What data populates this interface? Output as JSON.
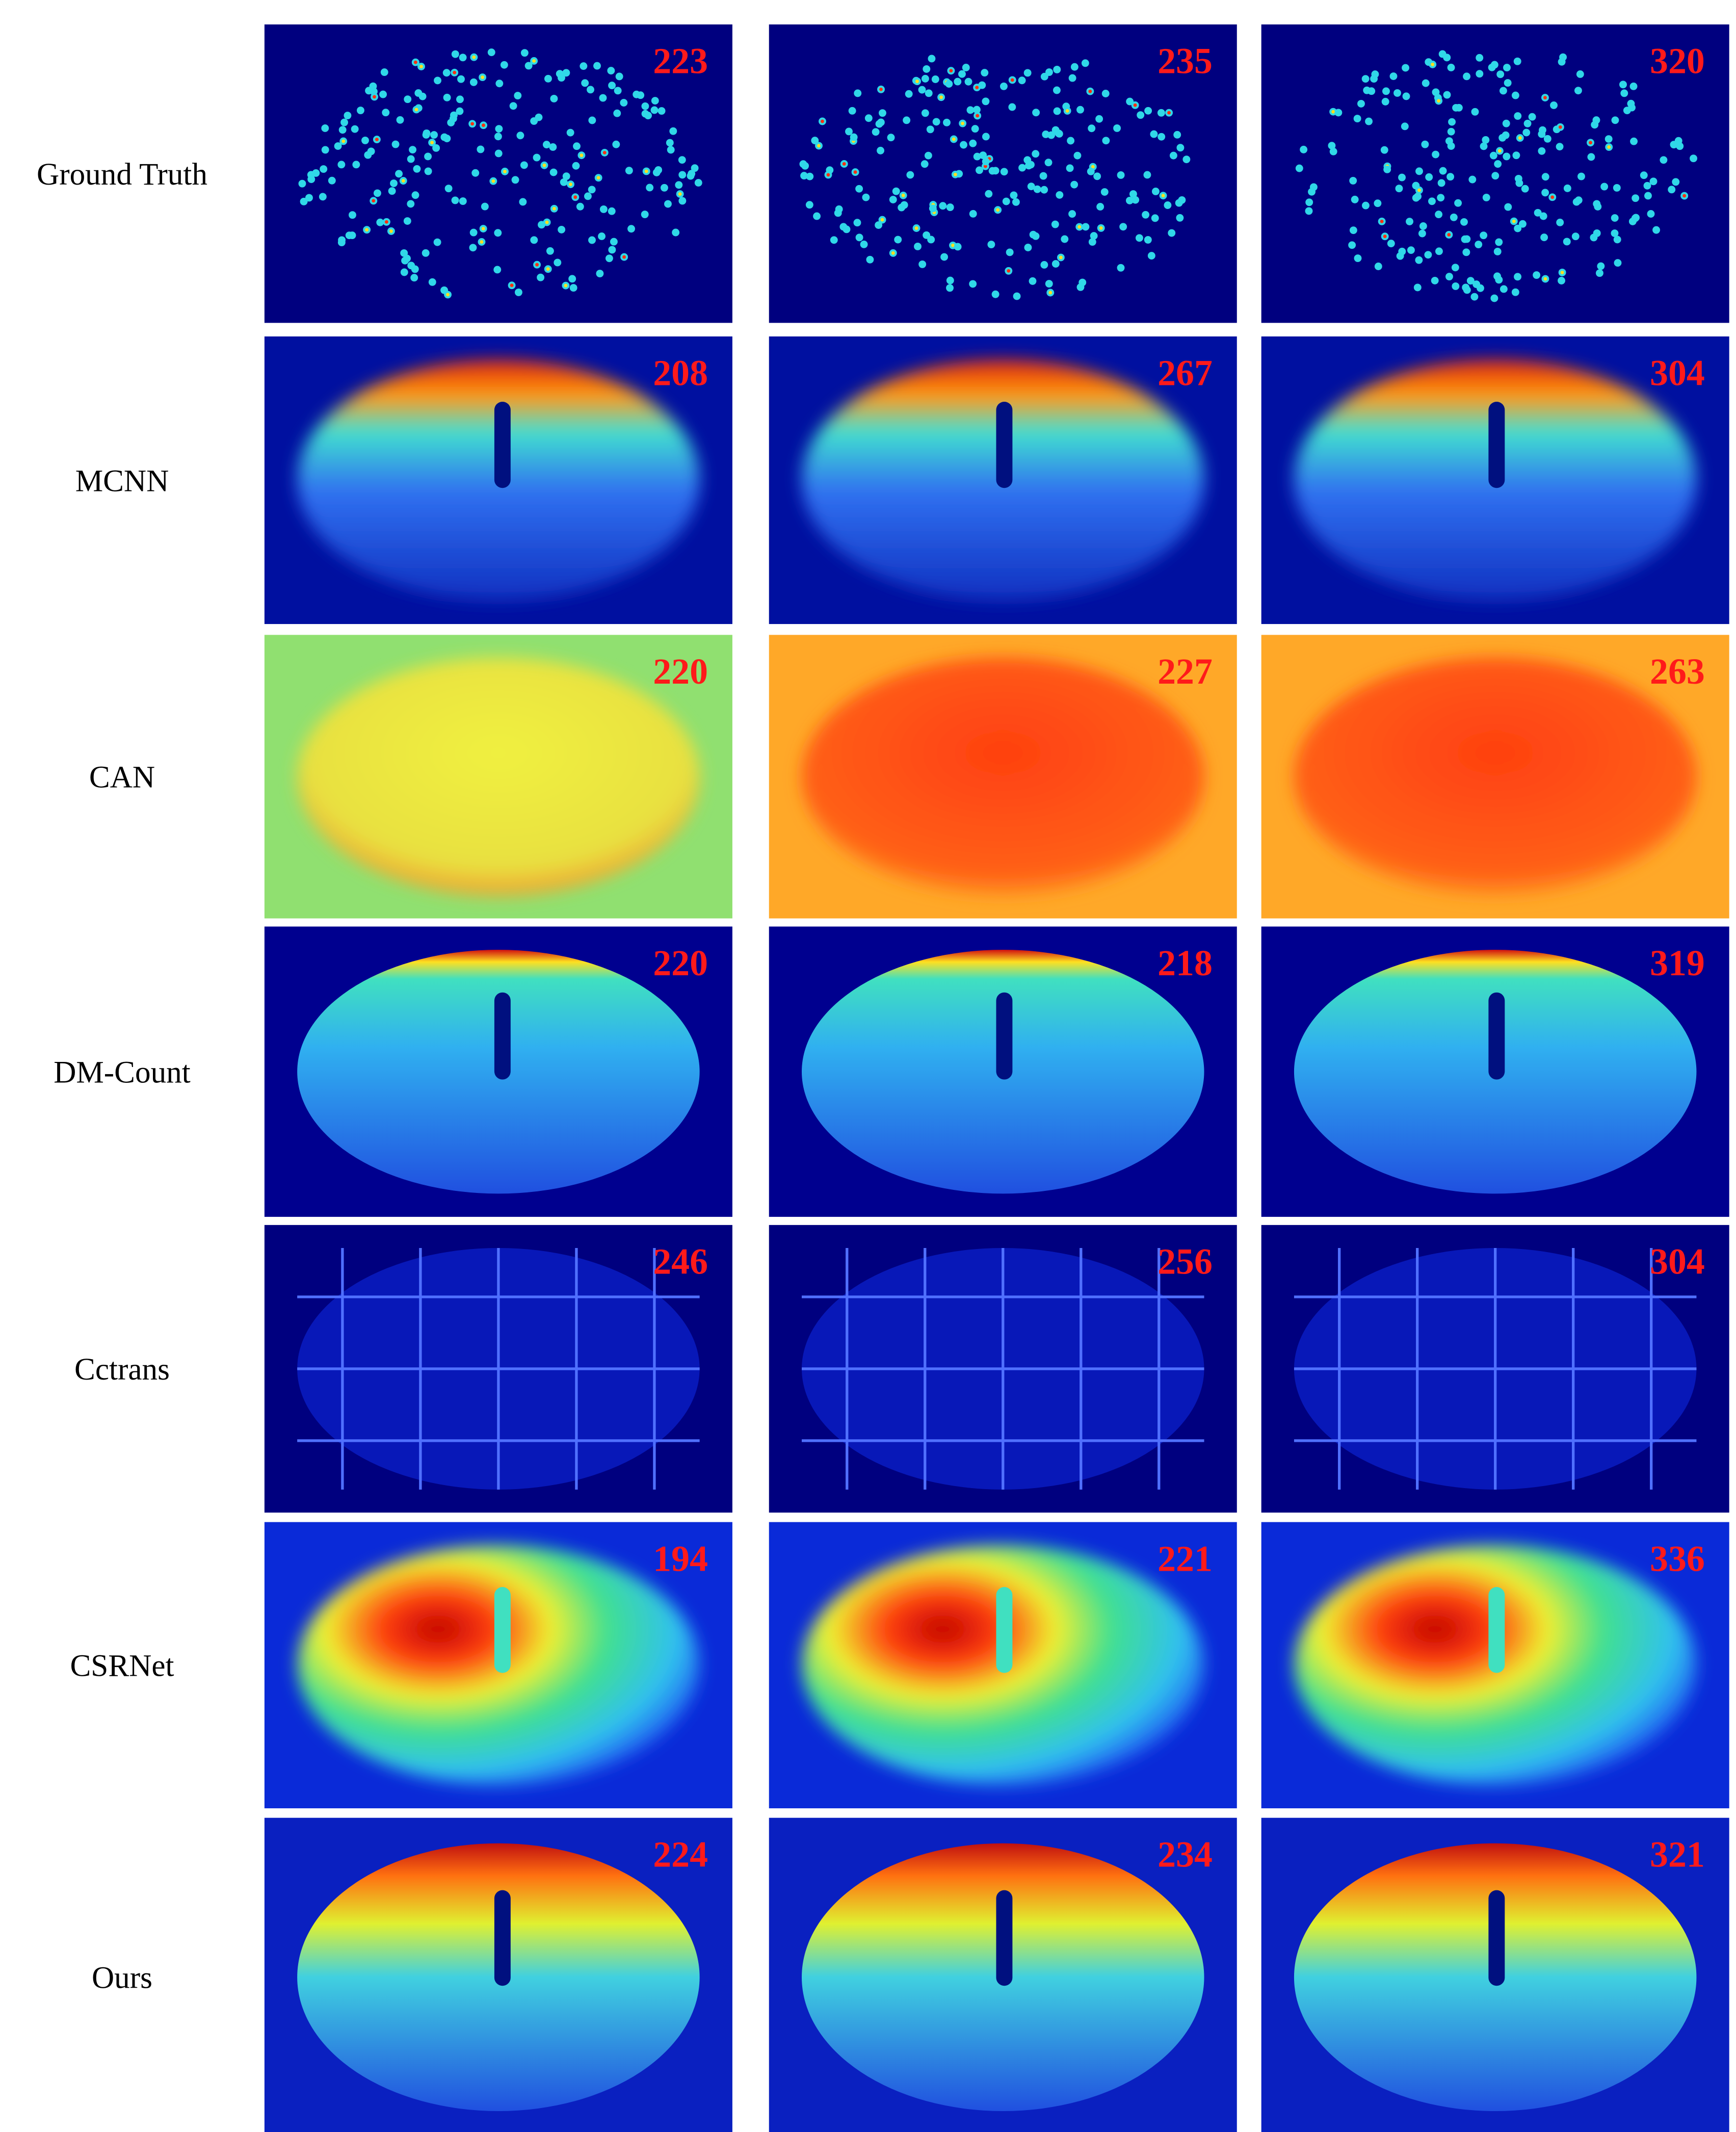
{
  "rows": [
    {
      "label": "Ground Truth",
      "counts": [
        223,
        235,
        320
      ]
    },
    {
      "label": "MCNN",
      "counts": [
        208,
        267,
        304
      ]
    },
    {
      "label": "CAN",
      "counts": [
        220,
        227,
        263
      ]
    },
    {
      "label": "DM-Count",
      "counts": [
        220,
        218,
        319
      ]
    },
    {
      "label": "Cctrans",
      "counts": [
        246,
        256,
        304
      ]
    },
    {
      "label": "CSRNet",
      "counts": [
        194,
        221,
        336
      ]
    },
    {
      "label": "Ours",
      "counts": [
        224,
        234,
        321
      ]
    }
  ]
}
